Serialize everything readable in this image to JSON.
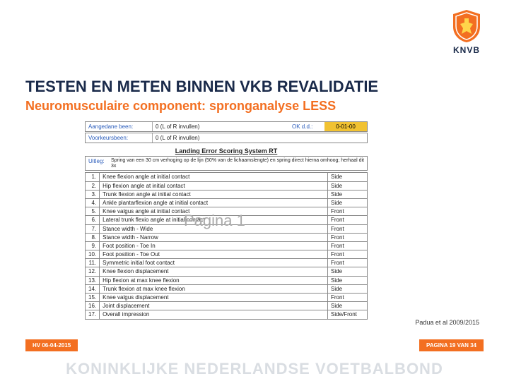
{
  "brand": {
    "name": "KNVB",
    "full": "KONINKLIJKE NEDERLANDSE VOETBALBOND",
    "accent": "#f36f21",
    "navy": "#1a2a4a"
  },
  "title": "TESTEN EN METEN BINNEN VKB REVALIDATIE",
  "subtitle": "Neuromusculaire component: spronganalyse LESS",
  "meta": {
    "row1_left": "Aangedane been:",
    "row1_mid": "0 (L of R invullen)",
    "row1_ok": "OK d.d.:",
    "row1_date": "0-01-00",
    "row2_left": "Voorkeursbeen:",
    "row2_mid": "0 (L of R invullen)"
  },
  "form_title": "Landing Error Scoring System RT",
  "uitleg": {
    "label": "Uitleg:",
    "text": "Spring van een 30 cm verhoging op de lijn (50% van de lichaamslengte) en spring direct hierna omhoog; herhaal dit 3x"
  },
  "rows": [
    {
      "n": "1.",
      "item": "Knee flexion angle at initial contact",
      "view": "Side"
    },
    {
      "n": "2.",
      "item": "Hip flexion angle at initial contact",
      "view": "Side"
    },
    {
      "n": "3.",
      "item": "Trunk flexion angle at initial contact",
      "view": "Side"
    },
    {
      "n": "4.",
      "item": "Ankle plantarflexion angle at initial contact",
      "view": "Side"
    },
    {
      "n": "5.",
      "item": "Knee valgus angle at initial contact",
      "view": "Front"
    },
    {
      "n": "6.",
      "item": "Lateral trunk flexio angle at initial contact",
      "view": "Front"
    },
    {
      "n": "7.",
      "item": "Stance width - Wide",
      "view": "Front"
    },
    {
      "n": "8.",
      "item": "Stance width - Narrow",
      "view": "Front"
    },
    {
      "n": "9.",
      "item": "Foot position - Toe In",
      "view": "Front"
    },
    {
      "n": "10.",
      "item": "Foot position - Toe Out",
      "view": "Front"
    },
    {
      "n": "11.",
      "item": "Symmetric initial foot contact",
      "view": "Front"
    },
    {
      "n": "12.",
      "item": "Knee flexion displacement",
      "view": "Side"
    },
    {
      "n": "13.",
      "item": "Hip flexion at max knee flexion",
      "view": "Side"
    },
    {
      "n": "14.",
      "item": "Trunk flexion at max knee flexion",
      "view": "Side"
    },
    {
      "n": "15.",
      "item": "Knee valgus displacement",
      "view": "Front"
    },
    {
      "n": "16.",
      "item": "Joint displacement",
      "view": "Side"
    },
    {
      "n": "17.",
      "item": "Overall impression",
      "view": "Side/Front"
    }
  ],
  "watermark": "Pagina 1",
  "citation": "Padua et al 2009/2015",
  "footer": {
    "left": "HV 06-04-2015",
    "right": "PAGINA 19 VAN 34"
  }
}
